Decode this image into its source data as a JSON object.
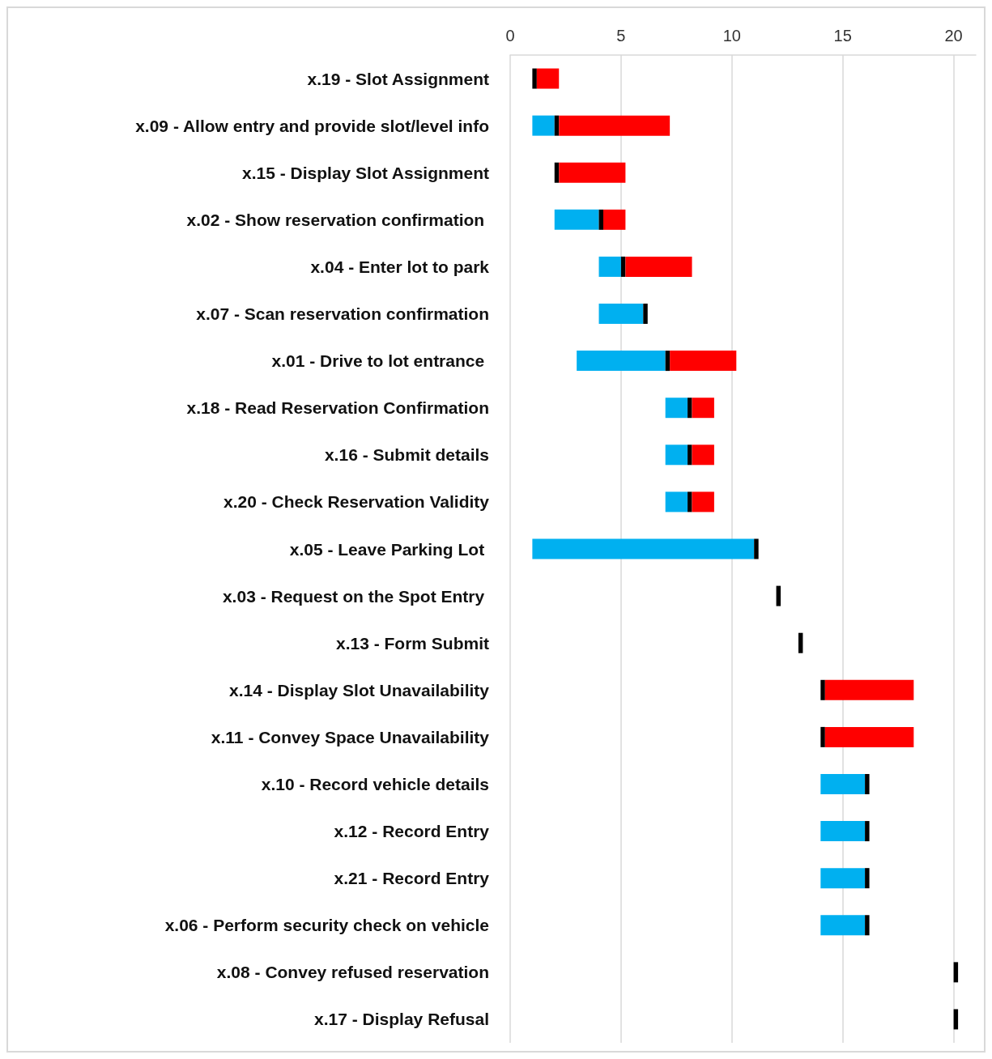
{
  "chart_data": {
    "type": "bar",
    "orientation": "horizontal",
    "categories": [
      "x.19 - Slot Assignment",
      "x.09 - Allow entry and provide slot/level info",
      "x.15 - Display Slot Assignment",
      "x.02 - Show reservation confirmation ",
      "x.04 - Enter lot to park",
      "x.07 - Scan reservation confirmation",
      "x.01 - Drive to lot entrance ",
      "x.18 - Read Reservation Confirmation",
      "x.16 - Submit details",
      "x.20 - Check Reservation Validity",
      "x.05 - Leave Parking Lot ",
      "x.03 - Request on the Spot Entry ",
      "x.13 - Form Submit",
      "x.14 - Display Slot Unavailability",
      "x.11 - Convey Space Unavailability",
      "x.10 - Record vehicle details",
      "x.12 - Record Entry",
      "x.21 - Record Entry",
      "x.06 - Perform security check on vehicle",
      "x.08 - Convey refused reservation",
      "x.17 - Display Refusal"
    ],
    "series": [
      {
        "color": "#00b0f0",
        "base": [
          null,
          1,
          null,
          2,
          4,
          4,
          3,
          7,
          7,
          7,
          1,
          null,
          null,
          null,
          null,
          14,
          14,
          14,
          14,
          null,
          null
        ],
        "values": [
          null,
          1,
          null,
          2,
          1,
          2,
          4,
          1,
          1,
          1,
          10,
          null,
          null,
          null,
          null,
          2,
          2,
          2,
          2,
          null,
          null
        ]
      },
      {
        "color": "#000000",
        "base": [
          1,
          2,
          2,
          4,
          5,
          6,
          7,
          8,
          8,
          8,
          11,
          12,
          13,
          14,
          14,
          16,
          16,
          16,
          16,
          20,
          20
        ],
        "values": [
          0.2,
          0.2,
          0.2,
          0.2,
          0.2,
          0.2,
          0.2,
          0.2,
          0.2,
          0.2,
          0.2,
          0.2,
          0.2,
          0.2,
          0.2,
          0.2,
          0.2,
          0.2,
          0.2,
          0.2,
          0.2
        ]
      },
      {
        "color": "#ff0000",
        "base": [
          1.2,
          2.2,
          2.2,
          4.2,
          5.2,
          null,
          7.2,
          8.2,
          8.2,
          8.2,
          null,
          null,
          null,
          14.2,
          14.2,
          null,
          null,
          null,
          null,
          null,
          null
        ],
        "values": [
          1,
          5,
          3,
          1,
          3,
          null,
          3,
          1,
          1,
          1,
          null,
          null,
          null,
          4,
          4,
          null,
          null,
          null,
          null,
          null,
          null
        ]
      }
    ],
    "xlim": [
      0,
      21
    ],
    "xticks": [
      0,
      5,
      10,
      15,
      20
    ],
    "grid": "x"
  }
}
